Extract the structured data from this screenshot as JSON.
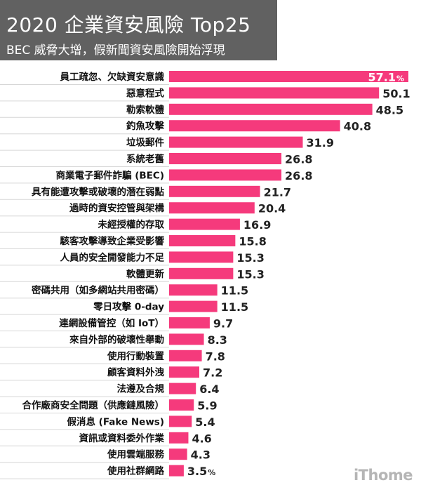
{
  "title": "2020 企業資安風險 Top25",
  "subtitle": "BEC 威脅大增，假新聞資安風險開始浮現",
  "watermark": "iThome",
  "colors": {
    "bar": "#f53a7c",
    "header_bg": "#616161",
    "label": "#111111"
  },
  "chart_data": {
    "type": "bar",
    "orientation": "horizontal",
    "unit": "%",
    "categories": [
      "員工疏忽、欠缺資安意識",
      "惡意程式",
      "勒索軟體",
      "釣魚攻擊",
      "垃圾郵件",
      "系統老舊",
      "商業電子郵件詐騙 (BEC)",
      "具有能遭攻擊或破壞的潛在弱點",
      "過時的資安控管與架構",
      "未經授權的存取",
      "駭客攻擊導致企業受影響",
      "人員的安全開發能力不足",
      "軟體更新",
      "密碼共用（如多網站共用密碼）",
      "零日攻擊 0-day",
      "連網設備管控（如 IoT）",
      "來自外部的破壞性舉動",
      "使用行動裝置",
      "顧客資料外洩",
      "法遵及合規",
      "合作廠商安全問題（供應鏈風險）",
      "假消息 (Fake News)",
      "資訊或資料委外作業",
      "使用雲端服務",
      "使用社群網路"
    ],
    "values": [
      57.1,
      50.1,
      48.5,
      40.8,
      31.9,
      26.8,
      26.8,
      21.7,
      20.4,
      16.9,
      15.8,
      15.3,
      15.3,
      11.5,
      11.5,
      9.7,
      8.3,
      7.8,
      7.2,
      6.4,
      5.9,
      5.4,
      4.6,
      4.3,
      3.5
    ],
    "value_labels": [
      "57.1",
      "50.1",
      "48.5",
      "40.8",
      "31.9",
      "26.8",
      "26.8",
      "21.7",
      "20.4",
      "16.9",
      "15.8",
      "15.3",
      "15.3",
      "11.5",
      "11.5",
      "9.7",
      "8.3",
      "7.8",
      "7.2",
      "6.4",
      "5.9",
      "5.4",
      "4.6",
      "4.3",
      "3.5"
    ],
    "percent_suffix_rows": [
      0,
      24
    ],
    "percent_symbol": "%",
    "xlim": [
      0,
      57.1
    ],
    "grid": false,
    "legend": "none"
  }
}
